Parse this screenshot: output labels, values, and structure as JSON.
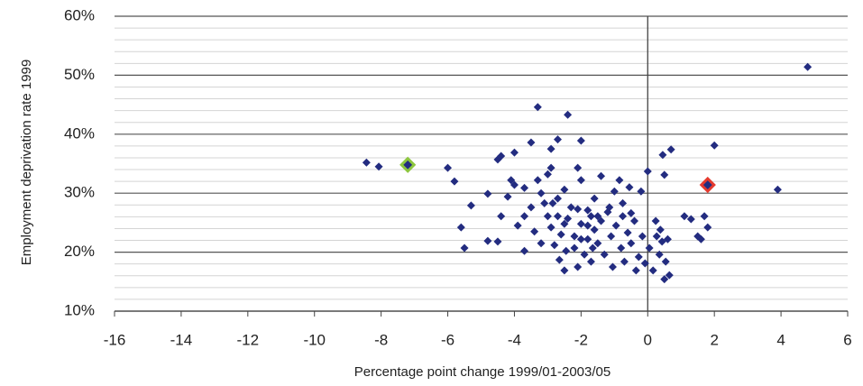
{
  "chart_data": {
    "type": "scatter",
    "x_label": "Percentage point change 1999/01-2003/05",
    "y_label": "Employment deprivation rate 1999",
    "xlim": [
      -16,
      6
    ],
    "xticks": [
      -16,
      -14,
      -12,
      -10,
      -8,
      -6,
      -4,
      -2,
      0,
      2,
      4,
      6
    ],
    "ylim": [
      10,
      60
    ],
    "yticks": [
      {
        "value": 10,
        "label": "10%"
      },
      {
        "value": 20,
        "label": "20%"
      },
      {
        "value": 30,
        "label": "30%"
      },
      {
        "value": 40,
        "label": "40%"
      },
      {
        "value": 50,
        "label": "50%"
      },
      {
        "value": 60,
        "label": "60%"
      }
    ],
    "minor_yticks": [
      12,
      14,
      16,
      18,
      22,
      24,
      26,
      28,
      32,
      34,
      36,
      38,
      42,
      44,
      46,
      48,
      52,
      54,
      56,
      58
    ],
    "grid": true,
    "yaxis_at": 0,
    "color": "#232c80",
    "x": [
      -8.44,
      -8.07,
      -6.0,
      -5.8,
      -3.3,
      -2.4,
      4.8,
      2.0,
      3.9,
      0.7,
      0.45,
      0,
      0.5,
      -2.0,
      -2.7,
      -2.9,
      -3.5,
      -4.0,
      -4.4,
      -4.5,
      -2.9,
      -3.0,
      -3.3,
      -4.1,
      -4.0,
      -3.7,
      -4.8,
      -5.3,
      -5.6,
      -5.5,
      -4.8,
      -4.5,
      -4.4,
      -4.2,
      -3.9,
      -3.7,
      -3.7,
      -3.5,
      -3.4,
      -3.2,
      -3.2,
      -3.0,
      -2.9,
      -2.8,
      -2.7,
      -2.65,
      -2.6,
      -2.5,
      -2.5,
      -2.4,
      -2.3,
      -2.2,
      -2.2,
      -2.1,
      -2.1,
      -2.0,
      -2.0,
      -1.9,
      -1.8,
      -1.8,
      -1.7,
      -1.7,
      -1.6,
      -1.6,
      -1.5,
      -1.4,
      -1.4,
      -1.3,
      -1.2,
      -1.1,
      -1.05,
      -1.0,
      -0.95,
      -0.85,
      -0.8,
      -0.75,
      -0.7,
      -0.6,
      -0.55,
      -0.5,
      -0.4,
      -0.35,
      -0.27,
      -0.2,
      -0.16,
      -0.08,
      0.05,
      0.16,
      0.24,
      0.27,
      0.35,
      0.38,
      0.43,
      0.5,
      0.54,
      0.6,
      0.65,
      1.1,
      1.3,
      1.5,
      1.6,
      1.7,
      1.8,
      -1.8,
      -1.5,
      -3.1,
      -2.7,
      -2.5,
      -2.1,
      -2.0,
      -1.15,
      -0.75,
      -0.5,
      -1.65,
      -2.85,
      -2.45
    ],
    "values": [
      35.2,
      34.5,
      34.3,
      32.0,
      44.6,
      43.3,
      51.4,
      38.1,
      30.6,
      37.4,
      36.5,
      33.7,
      33.1,
      38.9,
      39.1,
      37.5,
      38.6,
      36.9,
      36.3,
      35.7,
      34.3,
      33.2,
      32.2,
      32.2,
      31.4,
      30.9,
      29.9,
      27.9,
      24.2,
      20.7,
      21.9,
      21.8,
      26.1,
      29.4,
      24.5,
      26.1,
      20.2,
      27.6,
      23.5,
      21.5,
      30.0,
      26.1,
      24.2,
      21.2,
      29.1,
      18.7,
      23.0,
      30.6,
      16.9,
      25.7,
      27.6,
      22.7,
      20.7,
      34.3,
      17.5,
      32.2,
      24.8,
      19.6,
      27.1,
      22.2,
      26.1,
      18.4,
      23.8,
      29.1,
      21.5,
      32.9,
      25.3,
      19.6,
      26.8,
      22.7,
      17.5,
      30.3,
      24.5,
      32.2,
      20.7,
      26.1,
      18.4,
      23.3,
      31.0,
      21.5,
      25.3,
      16.9,
      19.2,
      30.3,
      22.7,
      18.1,
      20.7,
      16.9,
      25.3,
      22.7,
      19.6,
      23.8,
      21.8,
      15.4,
      18.4,
      22.2,
      16.1,
      26.1,
      25.6,
      22.7,
      22.2,
      26.1,
      24.2,
      24.5,
      26.1,
      28.3,
      26.1,
      24.8,
      27.3,
      22.2,
      27.6,
      28.3,
      26.6,
      20.7,
      28.3,
      20.2
    ],
    "highlights": [
      {
        "x": -7.2,
        "y": 34.8,
        "color": "#8dc63f"
      },
      {
        "x": 1.8,
        "y": 31.4,
        "color": "#e53a2e"
      }
    ]
  }
}
